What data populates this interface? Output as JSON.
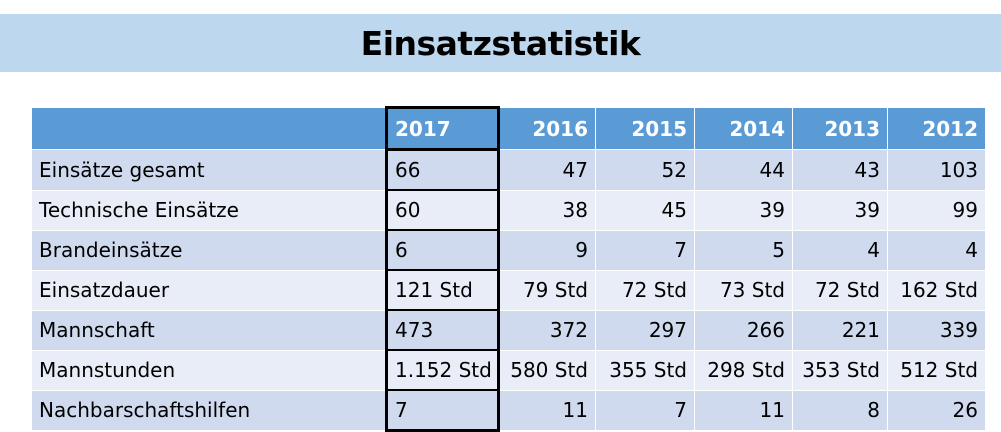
{
  "title": "Einsatzstatistik",
  "table": {
    "header": {
      "label": "",
      "years": [
        "2017",
        "2016",
        "2015",
        "2014",
        "2013",
        "2012"
      ]
    },
    "rows": [
      {
        "label": "Einsätze gesamt",
        "values": [
          "66",
          "47",
          "52",
          "44",
          "43",
          "103"
        ]
      },
      {
        "label": "Technische Einsätze",
        "values": [
          "60",
          "38",
          "45",
          "39",
          "39",
          "99"
        ]
      },
      {
        "label": "Brandeinsätze",
        "values": [
          "6",
          "9",
          "7",
          "5",
          "4",
          "4"
        ]
      },
      {
        "label": "Einsatzdauer",
        "values": [
          "121 Std",
          "79 Std",
          "72 Std",
          "73 Std",
          "72 Std",
          "162 Std"
        ]
      },
      {
        "label": "Mannschaft",
        "values": [
          "473",
          "372",
          "297",
          "266",
          "221",
          "339"
        ]
      },
      {
        "label": "Mannstunden",
        "values": [
          "1.152 Std",
          "580 Std",
          "355 Std",
          "298 Std",
          "353 Std",
          "512 Std"
        ]
      },
      {
        "label": "Nachbarschaftshilfen",
        "values": [
          "7",
          "11",
          "7",
          "11",
          "8",
          "26"
        ]
      }
    ]
  },
  "colors": {
    "title_band": "#bdd7ee",
    "header_fill": "#5b9bd5",
    "row_dark": "#cfdaee",
    "row_light": "#e8edf7",
    "highlight_border": "#000000"
  }
}
